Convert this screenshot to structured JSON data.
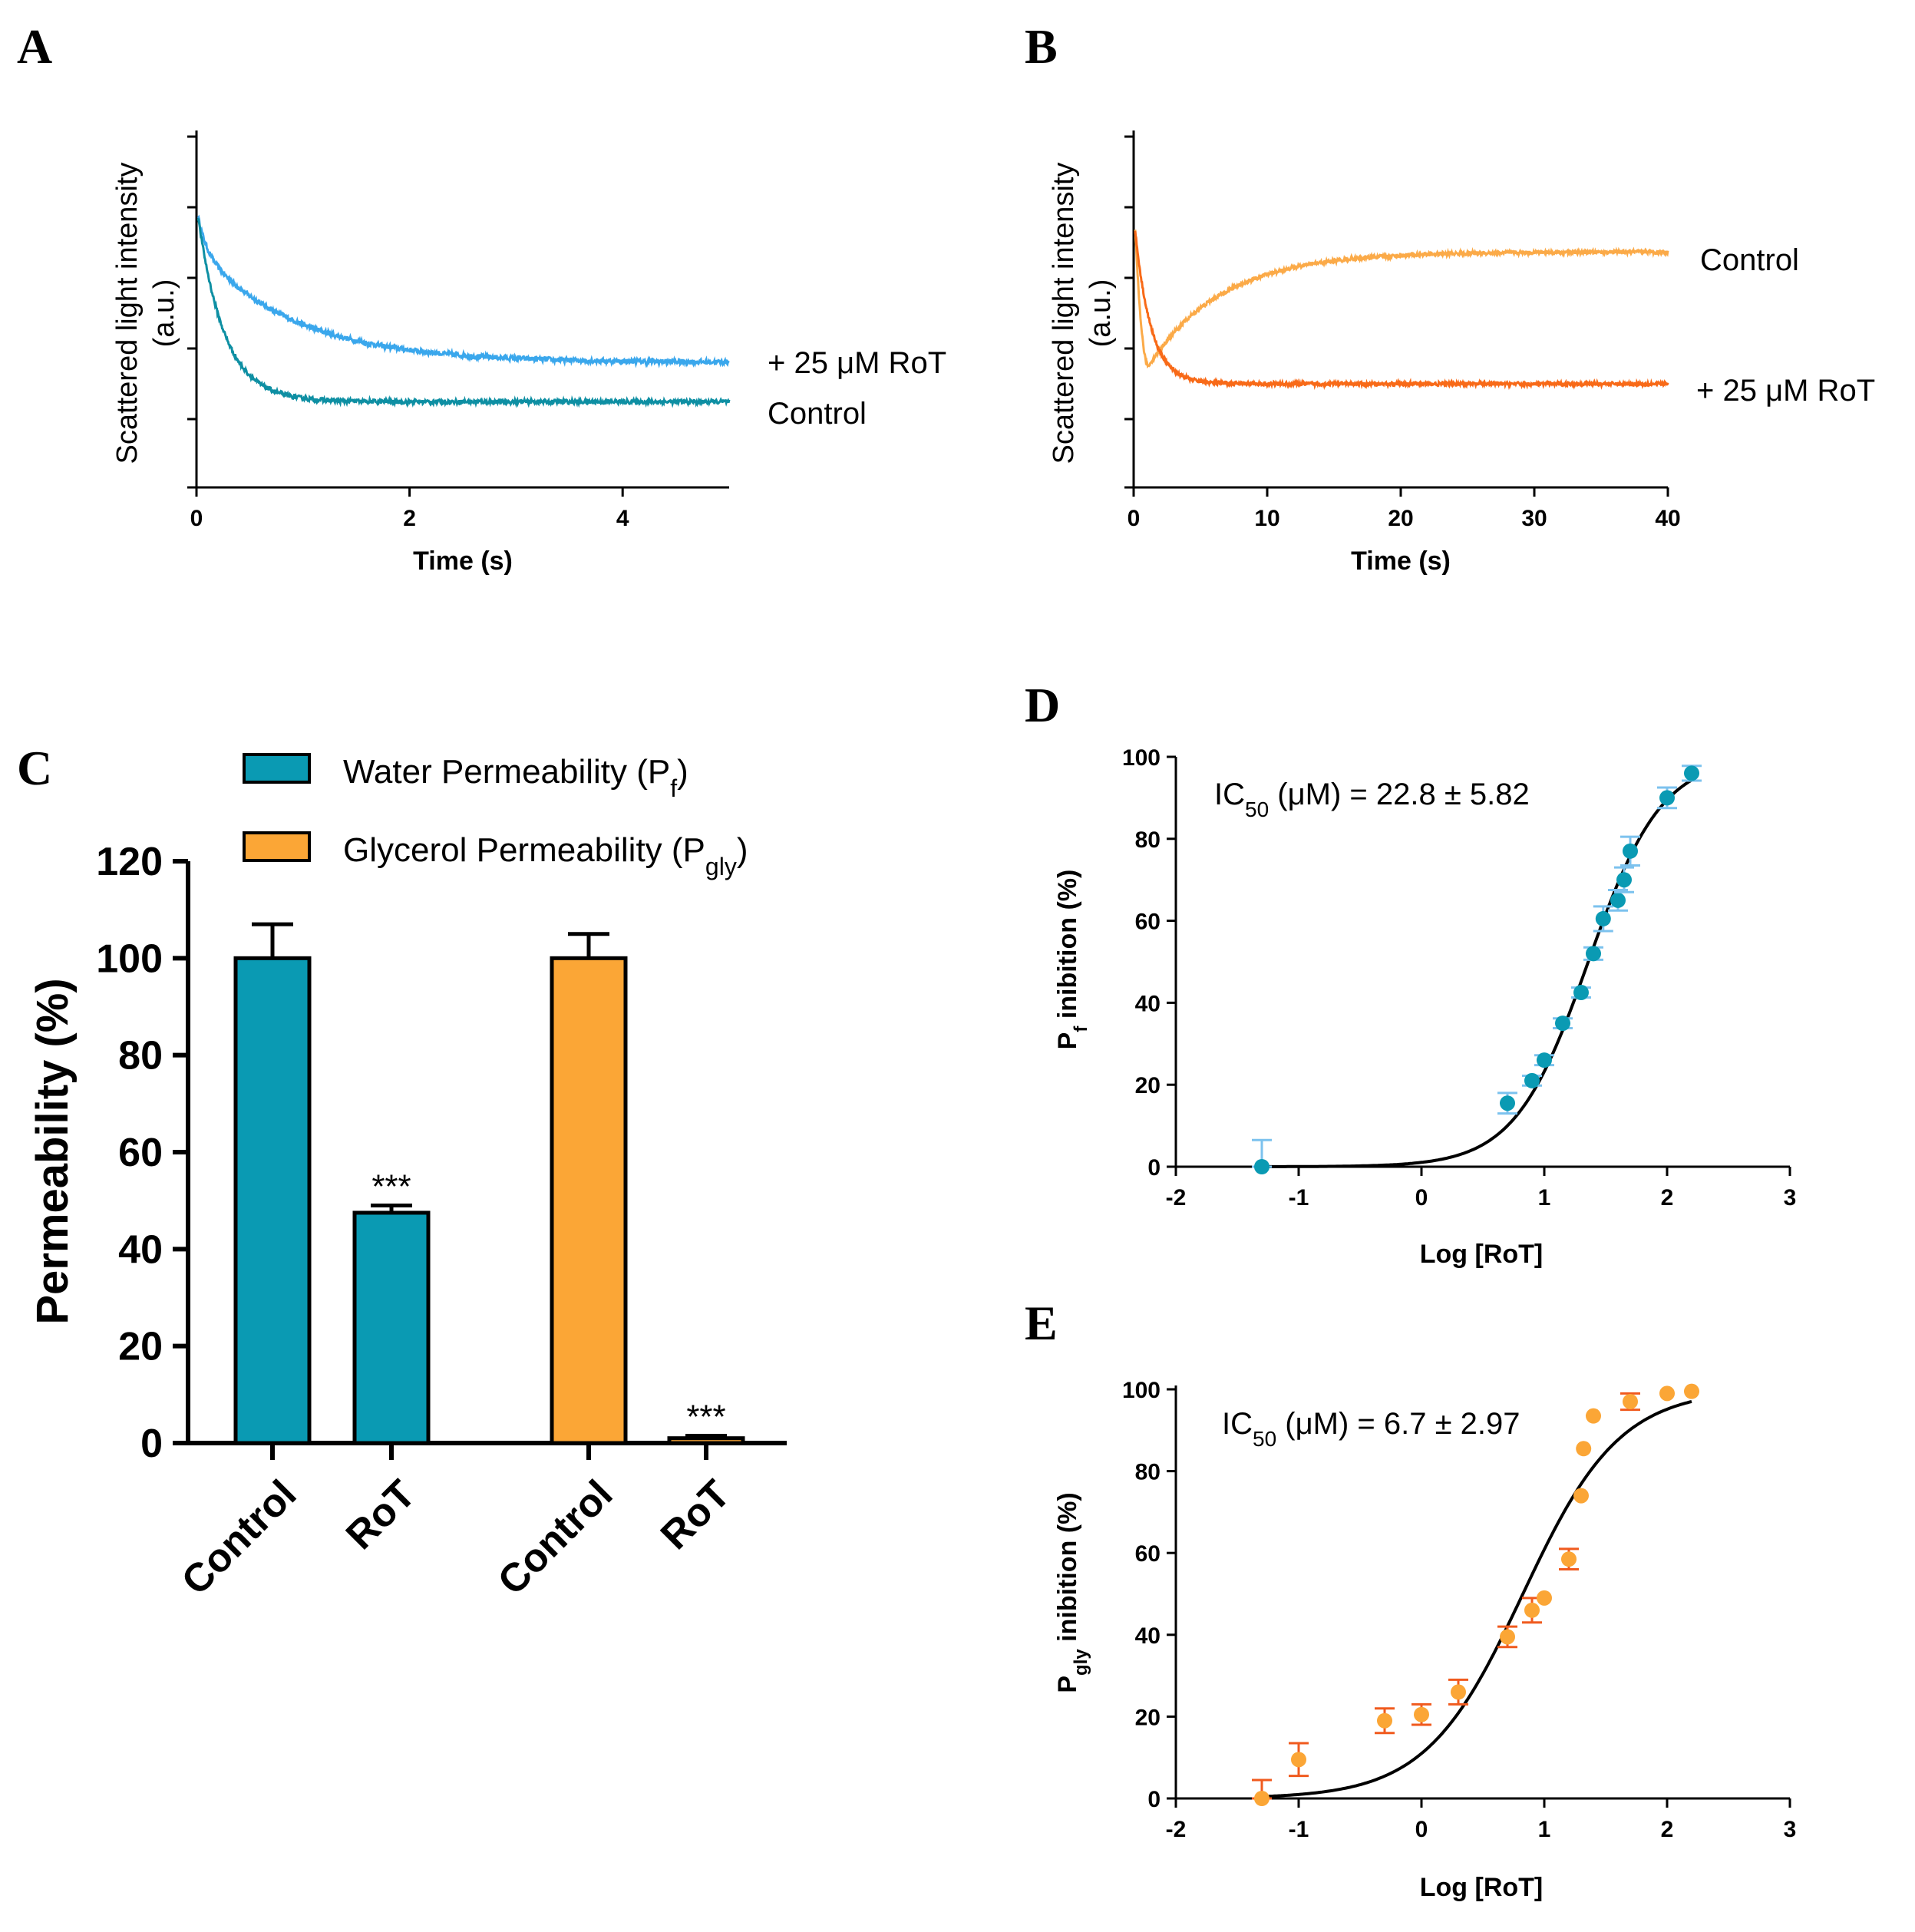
{
  "panels": {
    "A": "A",
    "B": "B",
    "C": "C",
    "D": "D",
    "E": "E"
  },
  "colors": {
    "teal": "#0a9ab3",
    "teal_dark": "#0e8fa3",
    "blue_light": "#3aa7ec",
    "orange": "#fba636",
    "orange_light": "#fbaa48",
    "orange_dark": "#f86a18",
    "error_blue": "#7cc2ee",
    "error_orange": "#f05a1e"
  },
  "chart_data": [
    {
      "id": "A",
      "type": "line",
      "title": "",
      "xlabel": "Time (s)",
      "ylabel": "Scattered light intensity",
      "ylabel_unit": "(a.u.)",
      "xlim": [
        0,
        5
      ],
      "ylim": [
        0,
        5
      ],
      "xticks": [
        "0",
        "2",
        "4"
      ],
      "xtick_values": [
        0,
        2,
        4
      ],
      "series": [
        {
          "name": "+ 25 μM RoT",
          "color": "#3aa7ec",
          "start": 3.8,
          "plateau": 1.75,
          "tau": 0.9,
          "early_drop": 0.45,
          "early_tau": 0.08,
          "noise": 0.035
        },
        {
          "name": "Control",
          "color": "#0e8fa3",
          "start": 3.8,
          "plateau": 1.2,
          "tau": 0.25,
          "early_drop": 0,
          "early_tau": 0.1,
          "noise": 0.03
        }
      ]
    },
    {
      "id": "B",
      "type": "line",
      "title": "",
      "xlabel": "Time (s)",
      "ylabel": "Scattered light intensity",
      "ylabel_unit": "(a.u.)",
      "xlim": [
        0,
        40
      ],
      "ylim": [
        0,
        5
      ],
      "xticks": [
        "0",
        "10",
        "20",
        "30",
        "40"
      ],
      "xtick_values": [
        0,
        10,
        20,
        30,
        40
      ],
      "series": [
        {
          "name": "Control",
          "color": "#fbaa48",
          "start": 3.6,
          "min": 1.7,
          "min_at": 1.0,
          "plateau": 3.3,
          "tau": 5.5,
          "noise": 0.025
        },
        {
          "name": "+ 25 μM RoT",
          "color": "#f86a18",
          "start": 3.6,
          "plateau": 1.45,
          "tau": 1.2,
          "noise": 0.025
        }
      ]
    },
    {
      "id": "C",
      "type": "bar",
      "ylabel": "Permeability (%)",
      "ylim": [
        0,
        120
      ],
      "yticks": [
        "0",
        "20",
        "40",
        "60",
        "80",
        "100",
        "120"
      ],
      "ytick_values": [
        0,
        20,
        40,
        60,
        80,
        100,
        120
      ],
      "categories": [
        "Control",
        "RoT",
        "Control",
        "RoT"
      ],
      "values": [
        100,
        47.5,
        100,
        1
      ],
      "errors": [
        7,
        1.5,
        5,
        0.5
      ],
      "series_index": [
        0,
        0,
        1,
        1
      ],
      "annotations": [
        "",
        "***",
        "",
        "***"
      ],
      "legend": [
        {
          "label": "Water Permeability (P",
          "sub": "f",
          "tail": ")",
          "color": "#0a9ab3"
        },
        {
          "label": "Glycerol Permeability (P",
          "sub": "gly",
          "tail": ")",
          "color": "#fba636"
        }
      ]
    },
    {
      "id": "D",
      "type": "scatter",
      "xlabel": "Log [RoT]",
      "ylabel_main": "P",
      "ylabel_sub": "f",
      "ylabel_tail": " inibition (%)",
      "xlim": [
        -2,
        3
      ],
      "ylim": [
        0,
        100
      ],
      "xticks": [
        "-2",
        "-1",
        "0",
        "1",
        "2",
        "3"
      ],
      "xtick_values": [
        -2,
        -1,
        0,
        1,
        2,
        3
      ],
      "yticks": [
        "0",
        "20",
        "40",
        "60",
        "80",
        "100"
      ],
      "ytick_values": [
        0,
        20,
        40,
        60,
        80,
        100
      ],
      "ic50_label": "IC",
      "ic50_sub": "50",
      "ic50_tail": " (μM) = 22.8 ± 5.82",
      "fit": {
        "logIC50": 1.358,
        "hill": 1.45,
        "bottom": 0,
        "top": 100,
        "x_from": -1.3,
        "x_to": 2.2
      },
      "points": {
        "x": [
          -1.3,
          0.7,
          0.9,
          1.0,
          1.15,
          1.3,
          1.4,
          1.48,
          1.6,
          1.65,
          1.7,
          2.0,
          2.2
        ],
        "y": [
          0,
          15.5,
          21,
          26,
          35,
          42.5,
          52,
          60.5,
          65,
          70,
          77,
          90,
          96
        ],
        "err": [
          6.5,
          2.5,
          1.2,
          1.2,
          1.2,
          1.2,
          1.5,
          3,
          2.5,
          3,
          3.5,
          2.5,
          1.8
        ]
      }
    },
    {
      "id": "E",
      "type": "scatter",
      "xlabel": "Log [RoT]",
      "ylabel_main": "P",
      "ylabel_sub": "gly",
      "ylabel_tail": " inibition (%)",
      "xlim": [
        -2,
        3
      ],
      "ylim": [
        0,
        100
      ],
      "xticks": [
        "-2",
        "-1",
        "0",
        "1",
        "2",
        "3"
      ],
      "xtick_values": [
        -2,
        -1,
        0,
        1,
        2,
        3
      ],
      "yticks": [
        "0",
        "20",
        "40",
        "60",
        "80",
        "100"
      ],
      "ytick_values": [
        0,
        20,
        40,
        60,
        80,
        100
      ],
      "ic50_label": "IC",
      "ic50_sub": "50",
      "ic50_tail": " (μM) = 6.7 ± 2.97",
      "fit": {
        "logIC50": 0.826,
        "hill": 1.1,
        "bottom": 0,
        "top": 100,
        "x_from": -1.3,
        "x_to": 2.2
      },
      "points": {
        "x": [
          -1.3,
          -1.0,
          -0.3,
          0.0,
          0.3,
          0.7,
          0.9,
          1.0,
          1.2,
          1.3,
          1.32,
          1.4,
          1.7,
          2.0,
          2.2
        ],
        "y": [
          0,
          9.5,
          19,
          20.5,
          26,
          39.5,
          46,
          49,
          58.5,
          74,
          85.5,
          93.5,
          97,
          99,
          99.5
        ],
        "err": [
          4.5,
          4,
          3,
          2.5,
          3,
          2.5,
          3,
          0,
          2.5,
          0,
          0,
          0,
          2,
          0,
          0
        ]
      }
    }
  ]
}
